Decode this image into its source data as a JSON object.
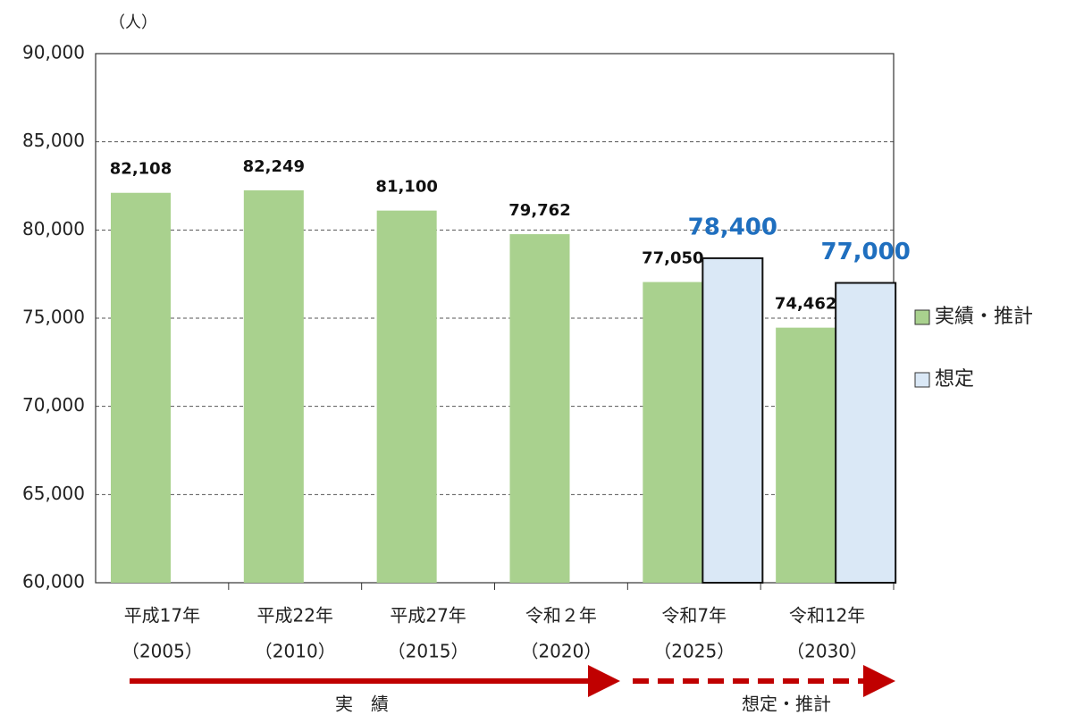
{
  "chart_data": {
    "type": "bar",
    "y_label": "（人）",
    "categories": [
      [
        "平成17年",
        "（2005）"
      ],
      [
        "平成22年",
        "（2010）"
      ],
      [
        "平成27年",
        "（2015）"
      ],
      [
        "令和２年",
        "（2020）"
      ],
      [
        "令和7年",
        "（2025）"
      ],
      [
        "令和12年",
        "（2030）"
      ]
    ],
    "series": [
      {
        "name": "実績・推計",
        "color": "#a9d18e",
        "label_color": "#111111",
        "values": [
          82108,
          82249,
          81100,
          79762,
          77050,
          74462
        ],
        "value_labels": [
          "82,108",
          "82,249",
          "81,100",
          "79,762",
          "77,050",
          "74,462"
        ]
      },
      {
        "name": "想定",
        "color": "#dae8f6",
        "label_color": "#1f6fbf",
        "values": [
          null,
          null,
          null,
          null,
          78400,
          77000
        ],
        "value_labels": [
          null,
          null,
          null,
          null,
          "78,400",
          "77,000"
        ]
      }
    ],
    "ylim": [
      60000,
      90000
    ],
    "yticks": [
      {
        "value": 60000,
        "label": "60,000"
      },
      {
        "value": 65000,
        "label": "65,000"
      },
      {
        "value": 70000,
        "label": "70,000"
      },
      {
        "value": 75000,
        "label": "75,000"
      },
      {
        "value": 80000,
        "label": "80,000"
      },
      {
        "value": 85000,
        "label": "85,000"
      },
      {
        "value": 90000,
        "label": "90,000"
      }
    ],
    "grid": true,
    "legend": "right",
    "annotations": [
      "実　績",
      "想定・推計"
    ]
  }
}
